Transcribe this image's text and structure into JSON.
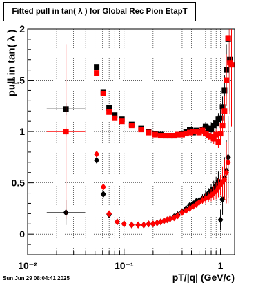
{
  "chart_data": {
    "type": "scatter",
    "title": "Fitted pull in tan( λ ) for Global Rec Pion EtapT",
    "xlabel": "pT/|q| (GeV/c)",
    "ylabel": "pull in tan( λ )",
    "x_scale": "log",
    "xlim": [
      0.01,
      1.4
    ],
    "ylim": [
      -0.2,
      2.0
    ],
    "x_tick_labels": [
      "10⁻²",
      "10⁻¹",
      "1"
    ],
    "y_tick_labels": [
      "0",
      "0.5",
      "1",
      "1.5",
      "2"
    ],
    "grid": true,
    "series": [
      {
        "marker": "square",
        "color": "#000000",
        "quantity": "sigma",
        "points": [
          {
            "x": 0.025,
            "y": 1.22,
            "xerr": [
              0.0092,
              0.0146
            ],
            "yerr": 0.06
          },
          {
            "x": 0.052,
            "y": 1.63,
            "xerr": [
              0.003,
              0.003
            ],
            "yerr": 0.02
          },
          {
            "x": 0.061,
            "y": 1.38,
            "xerr": [
              0.0025,
              0.0025
            ],
            "yerr": 0.02
          },
          {
            "x": 0.07,
            "y": 1.23,
            "xerr": [
              0.003,
              0.003
            ],
            "yerr": 0.02
          },
          {
            "x": 0.08,
            "y": 1.16,
            "xerr": [
              0.003,
              0.003
            ],
            "yerr": 0.015
          },
          {
            "x": 0.095,
            "y": 1.12,
            "xerr": [
              0.004,
              0.004
            ],
            "yerr": 0.015
          },
          {
            "x": 0.12,
            "y": 1.07,
            "xerr": [
              0.005,
              0.005
            ],
            "yerr": 0.01
          },
          {
            "x": 0.15,
            "y": 1.03,
            "yerr": 0.01
          },
          {
            "x": 0.18,
            "y": 1.0,
            "yerr": 0.01
          },
          {
            "x": 0.21,
            "y": 0.98,
            "yerr": 0.01
          },
          {
            "x": 0.24,
            "y": 0.97,
            "yerr": 0.01
          },
          {
            "x": 0.27,
            "y": 0.96,
            "yerr": 0.01
          },
          {
            "x": 0.3,
            "y": 0.96,
            "yerr": 0.01
          },
          {
            "x": 0.33,
            "y": 0.96,
            "yerr": 0.01
          },
          {
            "x": 0.36,
            "y": 0.97,
            "yerr": 0.01
          },
          {
            "x": 0.4,
            "y": 0.98,
            "yerr": 0.015
          },
          {
            "x": 0.44,
            "y": 1.0,
            "yerr": 0.015
          },
          {
            "x": 0.48,
            "y": 1.02,
            "yerr": 0.02
          },
          {
            "x": 0.52,
            "y": 0.99,
            "yerr": 0.02
          },
          {
            "x": 0.56,
            "y": 1.01,
            "yerr": 0.02
          },
          {
            "x": 0.6,
            "y": 1.0,
            "yerr": 0.02
          },
          {
            "x": 0.65,
            "y": 1.02,
            "yerr": 0.03
          },
          {
            "x": 0.7,
            "y": 1.05,
            "yerr": 0.03
          },
          {
            "x": 0.75,
            "y": 1.03,
            "yerr": 0.04
          },
          {
            "x": 0.8,
            "y": 1.02,
            "yerr": 0.04
          },
          {
            "x": 0.85,
            "y": 1.06,
            "yerr": 0.05
          },
          {
            "x": 0.9,
            "y": 1.08,
            "yerr": 0.05
          },
          {
            "x": 0.95,
            "y": 1.12,
            "yerr": 0.06
          },
          {
            "x": 1.0,
            "y": 1.13,
            "yerr": 0.08
          },
          {
            "x": 1.05,
            "y": 1.24,
            "yerr": 0.1
          },
          {
            "x": 1.1,
            "y": 1.4,
            "yerr": 0.15
          },
          {
            "x": 1.15,
            "y": 1.6,
            "yerr": 0.25
          },
          {
            "x": 1.2,
            "y": 1.9,
            "yerr": 0.4
          },
          {
            "x": 1.25,
            "y": 1.7,
            "yerr": 0.5
          }
        ]
      },
      {
        "marker": "square",
        "color": "#ff0000",
        "quantity": "sigma",
        "points": [
          {
            "x": 0.025,
            "y": 1.0,
            "xerr": [
              0.0092,
              0.0146
            ],
            "yerr": 0.05
          },
          {
            "x": 0.052,
            "y": 1.57,
            "xerr": [
              0.003,
              0.003
            ],
            "yerr": 0.02
          },
          {
            "x": 0.061,
            "y": 1.37,
            "xerr": [
              0.0025,
              0.0025
            ],
            "yerr": 0.02
          },
          {
            "x": 0.07,
            "y": 1.19,
            "xerr": [
              0.003,
              0.003
            ],
            "yerr": 0.02
          },
          {
            "x": 0.08,
            "y": 1.13,
            "xerr": [
              0.003,
              0.003
            ],
            "yerr": 0.015
          },
          {
            "x": 0.095,
            "y": 1.1,
            "xerr": [
              0.004,
              0.004
            ],
            "yerr": 0.015
          },
          {
            "x": 0.12,
            "y": 1.06,
            "xerr": [
              0.005,
              0.005
            ],
            "yerr": 0.01
          },
          {
            "x": 0.15,
            "y": 1.02,
            "yerr": 0.01
          },
          {
            "x": 0.18,
            "y": 0.99,
            "yerr": 0.01
          },
          {
            "x": 0.21,
            "y": 0.97,
            "yerr": 0.01
          },
          {
            "x": 0.24,
            "y": 0.96,
            "yerr": 0.01
          },
          {
            "x": 0.27,
            "y": 0.96,
            "yerr": 0.01
          },
          {
            "x": 0.3,
            "y": 0.96,
            "yerr": 0.01
          },
          {
            "x": 0.33,
            "y": 0.96,
            "yerr": 0.01
          },
          {
            "x": 0.36,
            "y": 0.97,
            "yerr": 0.01
          },
          {
            "x": 0.4,
            "y": 0.97,
            "yerr": 0.015
          },
          {
            "x": 0.44,
            "y": 0.98,
            "yerr": 0.015
          },
          {
            "x": 0.48,
            "y": 0.99,
            "yerr": 0.02
          },
          {
            "x": 0.52,
            "y": 1.0,
            "yerr": 0.02
          },
          {
            "x": 0.56,
            "y": 1.0,
            "yerr": 0.02
          },
          {
            "x": 0.6,
            "y": 0.99,
            "yerr": 0.02
          },
          {
            "x": 0.65,
            "y": 1.01,
            "yerr": 0.03
          },
          {
            "x": 0.7,
            "y": 0.98,
            "yerr": 0.03
          },
          {
            "x": 0.75,
            "y": 0.96,
            "yerr": 0.04
          },
          {
            "x": 0.8,
            "y": 0.95,
            "yerr": 0.04
          },
          {
            "x": 0.85,
            "y": 0.93,
            "yerr": 0.05
          },
          {
            "x": 0.9,
            "y": 0.97,
            "yerr": 0.05
          },
          {
            "x": 0.95,
            "y": 0.9,
            "yerr": 0.06
          },
          {
            "x": 1.0,
            "y": 0.98,
            "yerr": 0.08
          },
          {
            "x": 1.05,
            "y": 1.06,
            "yerr": 0.1
          },
          {
            "x": 1.1,
            "y": 1.2,
            "yerr": 0.15
          },
          {
            "x": 1.15,
            "y": 1.5,
            "yerr": 0.25
          },
          {
            "x": 1.2,
            "y": 1.91,
            "yerr": 0.4
          },
          {
            "x": 1.25,
            "y": 1.67,
            "yerr": 0.5
          },
          {
            "x": 1.3,
            "y": 1.65,
            "yerr": 0.6
          }
        ]
      },
      {
        "marker": "diamond",
        "color": "#000000",
        "quantity": "mean",
        "points": [
          {
            "x": 0.025,
            "y": 0.21,
            "xerr": [
              0.0092,
              0.0146
            ],
            "yerr": 0.12
          },
          {
            "x": 0.052,
            "y": 0.72,
            "xerr": [
              0.003,
              0.003
            ],
            "yerr": 0.03
          },
          {
            "x": 0.061,
            "y": 0.39,
            "xerr": [
              0.0025,
              0.0025
            ],
            "yerr": 0.02
          },
          {
            "x": 0.07,
            "y": 0.19,
            "xerr": [
              0.003,
              0.003
            ],
            "yerr": 0.02
          },
          {
            "x": 0.085,
            "y": 0.12,
            "xerr": [
              0.004,
              0.004
            ],
            "yerr": 0.015
          },
          {
            "x": 0.1,
            "y": 0.1,
            "yerr": 0.01
          },
          {
            "x": 0.12,
            "y": 0.09,
            "yerr": 0.01
          },
          {
            "x": 0.14,
            "y": 0.09,
            "yerr": 0.01
          },
          {
            "x": 0.16,
            "y": 0.09,
            "yerr": 0.01
          },
          {
            "x": 0.18,
            "y": 0.1,
            "yerr": 0.01
          },
          {
            "x": 0.2,
            "y": 0.1,
            "yerr": 0.01
          },
          {
            "x": 0.22,
            "y": 0.11,
            "yerr": 0.01
          },
          {
            "x": 0.24,
            "y": 0.12,
            "yerr": 0.01
          },
          {
            "x": 0.26,
            "y": 0.13,
            "yerr": 0.01
          },
          {
            "x": 0.28,
            "y": 0.14,
            "yerr": 0.01
          },
          {
            "x": 0.3,
            "y": 0.15,
            "yerr": 0.015
          },
          {
            "x": 0.33,
            "y": 0.17,
            "yerr": 0.015
          },
          {
            "x": 0.36,
            "y": 0.19,
            "yerr": 0.015
          },
          {
            "x": 0.4,
            "y": 0.22,
            "yerr": 0.02
          },
          {
            "x": 0.44,
            "y": 0.25,
            "yerr": 0.02
          },
          {
            "x": 0.48,
            "y": 0.28,
            "yerr": 0.02
          },
          {
            "x": 0.52,
            "y": 0.3,
            "yerr": 0.03
          },
          {
            "x": 0.56,
            "y": 0.32,
            "yerr": 0.03
          },
          {
            "x": 0.6,
            "y": 0.33,
            "yerr": 0.03
          },
          {
            "x": 0.65,
            "y": 0.35,
            "yerr": 0.04
          },
          {
            "x": 0.7,
            "y": 0.37,
            "yerr": 0.05
          },
          {
            "x": 0.75,
            "y": 0.4,
            "yerr": 0.05
          },
          {
            "x": 0.8,
            "y": 0.43,
            "yerr": 0.06
          },
          {
            "x": 0.85,
            "y": 0.45,
            "yerr": 0.07
          },
          {
            "x": 0.9,
            "y": 0.48,
            "yerr": 0.08
          },
          {
            "x": 0.95,
            "y": 0.52,
            "yerr": 0.09
          },
          {
            "x": 1.0,
            "y": 0.14,
            "yerr": 0.1
          },
          {
            "x": 1.05,
            "y": 0.34,
            "yerr": 0.15
          },
          {
            "x": 1.1,
            "y": 0.55,
            "yerr": 0.2
          },
          {
            "x": 1.15,
            "y": 0.62,
            "yerr": 0.3
          },
          {
            "x": 1.2,
            "y": 0.75,
            "yerr": 0.4
          }
        ]
      },
      {
        "marker": "diamond",
        "color": "#ff0000",
        "quantity": "mean",
        "points": [
          {
            "x": 0.025,
            "y": 1.0,
            "xerr": [
              0.0092,
              0.0146
            ],
            "yerr": 0.85
          },
          {
            "x": 0.052,
            "y": 0.78,
            "xerr": [
              0.003,
              0.003
            ],
            "yerr": 0.03
          },
          {
            "x": 0.061,
            "y": 0.46,
            "xerr": [
              0.0025,
              0.0025
            ],
            "yerr": 0.02
          },
          {
            "x": 0.07,
            "y": 0.2,
            "xerr": [
              0.003,
              0.003
            ],
            "yerr": 0.02
          },
          {
            "x": 0.085,
            "y": 0.12,
            "xerr": [
              0.004,
              0.004
            ],
            "yerr": 0.015
          },
          {
            "x": 0.1,
            "y": 0.1,
            "yerr": 0.01
          },
          {
            "x": 0.12,
            "y": 0.09,
            "yerr": 0.01
          },
          {
            "x": 0.14,
            "y": 0.09,
            "yerr": 0.01
          },
          {
            "x": 0.16,
            "y": 0.09,
            "yerr": 0.01
          },
          {
            "x": 0.18,
            "y": 0.1,
            "yerr": 0.01
          },
          {
            "x": 0.2,
            "y": 0.1,
            "yerr": 0.01
          },
          {
            "x": 0.22,
            "y": 0.11,
            "yerr": 0.01
          },
          {
            "x": 0.24,
            "y": 0.12,
            "yerr": 0.01
          },
          {
            "x": 0.26,
            "y": 0.13,
            "yerr": 0.01
          },
          {
            "x": 0.28,
            "y": 0.14,
            "yerr": 0.01
          },
          {
            "x": 0.3,
            "y": 0.15,
            "yerr": 0.015
          },
          {
            "x": 0.33,
            "y": 0.16,
            "yerr": 0.015
          },
          {
            "x": 0.36,
            "y": 0.18,
            "yerr": 0.015
          },
          {
            "x": 0.4,
            "y": 0.21,
            "yerr": 0.02
          },
          {
            "x": 0.44,
            "y": 0.23,
            "yerr": 0.02
          },
          {
            "x": 0.48,
            "y": 0.25,
            "yerr": 0.02
          },
          {
            "x": 0.52,
            "y": 0.27,
            "yerr": 0.03
          },
          {
            "x": 0.56,
            "y": 0.29,
            "yerr": 0.03
          },
          {
            "x": 0.6,
            "y": 0.31,
            "yerr": 0.03
          },
          {
            "x": 0.65,
            "y": 0.33,
            "yerr": 0.04
          },
          {
            "x": 0.7,
            "y": 0.35,
            "yerr": 0.05
          },
          {
            "x": 0.75,
            "y": 0.36,
            "yerr": 0.05
          },
          {
            "x": 0.8,
            "y": 0.38,
            "yerr": 0.06
          },
          {
            "x": 0.85,
            "y": 0.4,
            "yerr": 0.07
          },
          {
            "x": 0.9,
            "y": 0.42,
            "yerr": 0.08
          },
          {
            "x": 0.95,
            "y": 0.45,
            "yerr": 0.09
          },
          {
            "x": 1.0,
            "y": 0.48,
            "yerr": 0.1
          },
          {
            "x": 1.05,
            "y": 0.51,
            "yerr": 0.15
          },
          {
            "x": 1.1,
            "y": 0.53,
            "yerr": 0.2
          },
          {
            "x": 1.15,
            "y": 0.6,
            "yerr": 0.3
          },
          {
            "x": 1.2,
            "y": 0.7,
            "yerr": 0.4
          }
        ]
      }
    ]
  },
  "footer": {
    "timestamp": "Sun Jun 29 08:04:41 2025"
  }
}
